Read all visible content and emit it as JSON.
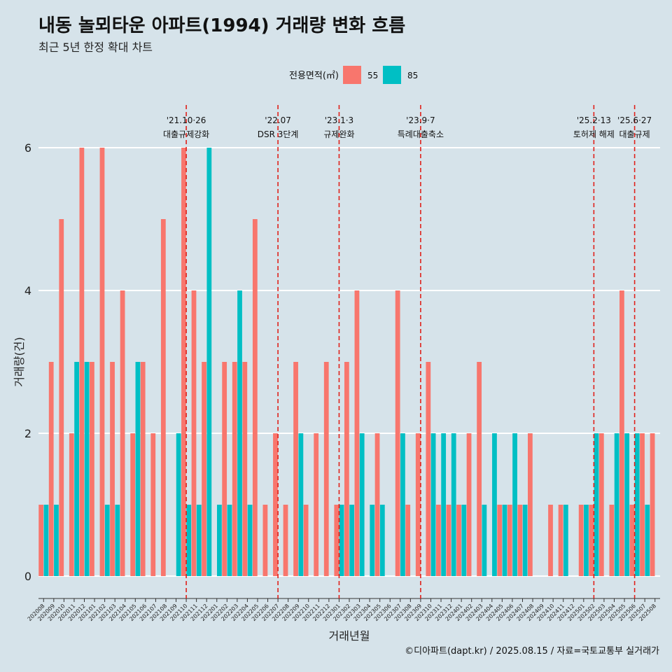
{
  "chart_data": {
    "type": "bar",
    "title": "내동 놀뫼타운 아파트(1994) 거래량 변화 흐름",
    "subtitle": "최근 5년 한정 확대 차트",
    "xlabel": "거래년월",
    "ylabel": "거래량(건)",
    "caption": "©디아파트(dapt.kr) / 2025.08.15 / 자료=국토교통부 실거래가",
    "legend": {
      "title": "전용면적(㎡)",
      "position": "top"
    },
    "ylim": [
      0,
      6
    ],
    "yticks": [
      0,
      2,
      4,
      6
    ],
    "colors": {
      "55": "#f8766d",
      "85": "#00bfc4",
      "vline": "#e0201a"
    },
    "categories": [
      "202008",
      "202009",
      "202010",
      "202011",
      "202012",
      "202101",
      "202102",
      "202103",
      "202104",
      "202105",
      "202106",
      "202107",
      "202108",
      "202109",
      "202110",
      "202111",
      "202112",
      "202201",
      "202202",
      "202203",
      "202204",
      "202205",
      "202206",
      "202207",
      "202208",
      "202209",
      "202210",
      "202211",
      "202212",
      "202301",
      "202302",
      "202303",
      "202304",
      "202305",
      "202306",
      "202307",
      "202308",
      "202309",
      "202310",
      "202311",
      "202312",
      "202401",
      "202402",
      "202403",
      "202404",
      "202405",
      "202406",
      "202407",
      "202408",
      "202409",
      "202410",
      "202411",
      "202412",
      "202501",
      "202502",
      "202503",
      "202504",
      "202505",
      "202506",
      "202507",
      "202508"
    ],
    "series": [
      {
        "name": "55",
        "values": [
          1,
          3,
          5,
          2,
          6,
          3,
          6,
          3,
          4,
          2,
          3,
          2,
          5,
          0,
          6,
          4,
          3,
          0,
          3,
          3,
          3,
          5,
          1,
          2,
          1,
          3,
          1,
          2,
          3,
          1,
          3,
          4,
          0,
          2,
          0,
          4,
          1,
          2,
          3,
          1,
          1,
          1,
          2,
          3,
          0,
          1,
          1,
          1,
          2,
          0,
          1,
          1,
          0,
          1,
          1,
          2,
          1,
          4,
          1,
          2,
          2
        ]
      },
      {
        "name": "85",
        "values": [
          1,
          1,
          0,
          3,
          3,
          0,
          1,
          1,
          0,
          3,
          0,
          0,
          0,
          2,
          1,
          1,
          6,
          1,
          1,
          4,
          1,
          0,
          0,
          0,
          0,
          2,
          0,
          0,
          0,
          1,
          1,
          2,
          1,
          1,
          0,
          2,
          0,
          0,
          2,
          2,
          2,
          1,
          0,
          1,
          2,
          1,
          2,
          1,
          0,
          0,
          0,
          1,
          0,
          1,
          2,
          0,
          2,
          2,
          2,
          1,
          0
        ]
      }
    ],
    "events": [
      {
        "category": "202110",
        "date": "'21.10·26",
        "label": "대출규제강화"
      },
      {
        "category": "202207",
        "date": "'22.07",
        "label": "DSR 3단계"
      },
      {
        "category": "202301",
        "date": "'23.1·3",
        "label": "규제완화"
      },
      {
        "category": "202309",
        "date": "'23.9·7",
        "label": "특례대출축소"
      },
      {
        "category": "202502",
        "date": "'25.2·13",
        "label": "토허제 해제"
      },
      {
        "category": "202506",
        "date": "'25.6·27",
        "label": "대출규제"
      }
    ]
  }
}
